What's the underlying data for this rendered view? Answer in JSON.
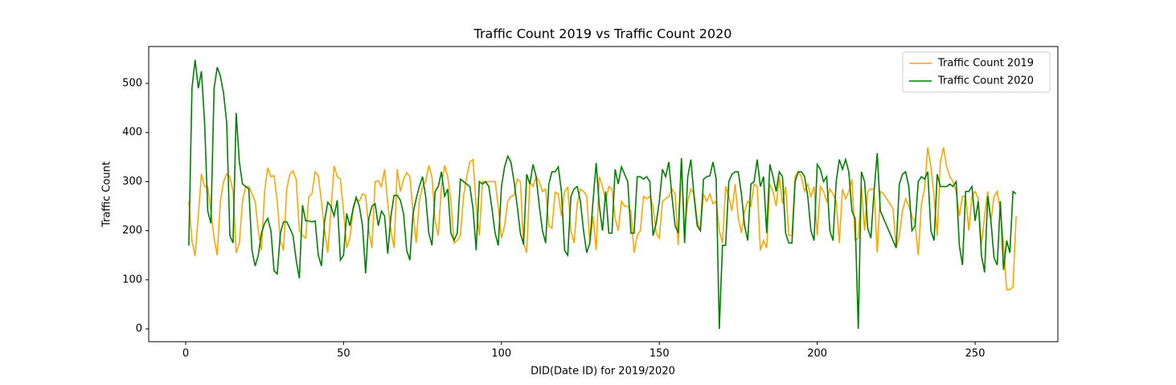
{
  "chart_data": {
    "type": "line",
    "title": "Traffic Count 2019 vs Traffic Count 2020",
    "x_label": "DID(Date ID) for 2019/2020",
    "y_label": "Traffic Count",
    "x": [
      1,
      2,
      3,
      4,
      5,
      6,
      7,
      8,
      9,
      10,
      11,
      12,
      13,
      14,
      15,
      16,
      17,
      18,
      19,
      20,
      21,
      22,
      23,
      24,
      25,
      26,
      27,
      28,
      29,
      30,
      31,
      32,
      33,
      34,
      35,
      36,
      37,
      38,
      39,
      40,
      41,
      42,
      43,
      44,
      45,
      46,
      47,
      48,
      49,
      50,
      51,
      52,
      53,
      54,
      55,
      56,
      57,
      58,
      59,
      60,
      61,
      62,
      63,
      64,
      65,
      66,
      67,
      68,
      69,
      70,
      71,
      72,
      73,
      74,
      75,
      76,
      77,
      78,
      79,
      80,
      81,
      82,
      83,
      84,
      85,
      86,
      87,
      88,
      89,
      90,
      91,
      92,
      93,
      94,
      95,
      96,
      97,
      98,
      99,
      100,
      101,
      102,
      103,
      104,
      105,
      106,
      107,
      108,
      109,
      110,
      111,
      112,
      113,
      114,
      115,
      116,
      117,
      118,
      119,
      120,
      121,
      122,
      123,
      124,
      125,
      126,
      127,
      128,
      129,
      130,
      131,
      132,
      133,
      134,
      135,
      136,
      137,
      138,
      139,
      140,
      141,
      142,
      143,
      144,
      145,
      146,
      147,
      148,
      149,
      150,
      151,
      152,
      153,
      154,
      155,
      156,
      157,
      158,
      159,
      160,
      161,
      162,
      163,
      164,
      165,
      166,
      167,
      168,
      169,
      170,
      171,
      172,
      173,
      174,
      175,
      176,
      177,
      178,
      179,
      180,
      181,
      182,
      183,
      184,
      185,
      186,
      187,
      188,
      189,
      190,
      191,
      192,
      193,
      194,
      195,
      196,
      197,
      198,
      199,
      200,
      201,
      202,
      203,
      204,
      205,
      206,
      207,
      208,
      209,
      210,
      211,
      212,
      213,
      214,
      215,
      216,
      217,
      218,
      219,
      220,
      221,
      222,
      223,
      224,
      225,
      226,
      227,
      228,
      229,
      230,
      231,
      232,
      233,
      234,
      235,
      236,
      237,
      238,
      239,
      240,
      241,
      242,
      243,
      244,
      245,
      246,
      247,
      248,
      249,
      250,
      251,
      252,
      253,
      254,
      255,
      256,
      257,
      258,
      259,
      260,
      261,
      262,
      263
    ],
    "series": [
      {
        "name": "Traffic Count 2019",
        "color": "orange",
        "values": [
          260,
          180,
          148,
          230,
          316,
          290,
          290,
          240,
          185,
          150,
          260,
          300,
          316,
          310,
          280,
          155,
          175,
          260,
          290,
          290,
          275,
          260,
          200,
          160,
          280,
          328,
          310,
          312,
          260,
          180,
          160,
          285,
          315,
          322,
          305,
          200,
          190,
          185,
          270,
          275,
          320,
          312,
          260,
          200,
          155,
          240,
          332,
          310,
          305,
          240,
          165,
          185,
          240,
          265,
          260,
          275,
          272,
          200,
          165,
          300,
          302,
          290,
          325,
          255,
          200,
          165,
          325,
          280,
          305,
          318,
          310,
          240,
          175,
          260,
          290,
          300,
          333,
          310,
          220,
          190,
          290,
          333,
          310,
          260,
          175,
          180,
          190,
          270,
          310,
          340,
          345,
          250,
          190,
          300,
          300,
          300,
          300,
          300,
          250,
          185,
          210,
          260,
          270,
          272,
          305,
          300,
          175,
          155,
          300,
          290,
          310,
          300,
          280,
          285,
          210,
          205,
          278,
          275,
          230,
          280,
          288,
          200,
          175,
          255,
          285,
          280,
          270,
          175,
          230,
          160,
          310,
          290,
          260,
          290,
          285,
          225,
          200,
          260,
          250,
          250,
          240,
          155,
          190,
          200,
          270,
          265,
          270,
          250,
          195,
          185,
          260,
          265,
          270,
          285,
          275,
          170,
          345,
          200,
          260,
          285,
          275,
          220,
          200,
          275,
          260,
          275,
          255,
          260,
          200,
          175,
          290,
          270,
          240,
          295,
          225,
          195,
          240,
          260,
          250,
          295,
          290,
          160,
          180,
          165,
          295,
          280,
          250,
          310,
          255,
          290,
          190,
          190,
          310,
          320,
          310,
          280,
          295,
          270,
          290,
          190,
          290,
          280,
          260,
          285,
          275,
          260,
          175,
          285,
          265,
          280,
          305,
          180,
          185,
          290,
          200,
          280,
          285,
          285,
          155,
          280,
          275,
          265,
          255,
          245,
          165,
          190,
          240,
          265,
          250,
          230,
          215,
          150,
          255,
          285,
          370,
          330,
          270,
          190,
          340,
          370,
          330,
          310,
          300,
          280,
          230,
          270,
          270,
          200,
          270,
          280,
          265,
          170,
          230,
          280,
          220,
          270,
          280,
          240,
          175,
          80,
          80,
          85,
          230
        ]
      },
      {
        "name": "Traffic Count 2020",
        "color": "green",
        "values": [
          170,
          490,
          548,
          490,
          525,
          420,
          240,
          215,
          490,
          533,
          515,
          480,
          420,
          190,
          175,
          440,
          340,
          295,
          290,
          285,
          160,
          128,
          150,
          195,
          215,
          225,
          200,
          118,
          112,
          195,
          218,
          218,
          205,
          190,
          140,
          103,
          252,
          220,
          220,
          218,
          220,
          150,
          128,
          220,
          258,
          250,
          230,
          262,
          140,
          150,
          235,
          210,
          245,
          268,
          250,
          210,
          113,
          225,
          250,
          255,
          210,
          240,
          230,
          153,
          230,
          272,
          272,
          262,
          235,
          160,
          140,
          235,
          265,
          290,
          310,
          270,
          195,
          170,
          280,
          290,
          320,
          270,
          285,
          195,
          180,
          195,
          305,
          300,
          295,
          290,
          245,
          160,
          300,
          295,
          300,
          290,
          245,
          195,
          170,
          290,
          330,
          352,
          340,
          300,
          250,
          195,
          172,
          315,
          295,
          335,
          310,
          250,
          200,
          175,
          295,
          320,
          320,
          330,
          280,
          160,
          150,
          270,
          285,
          290,
          260,
          200,
          155,
          175,
          260,
          338,
          250,
          200,
          280,
          195,
          195,
          325,
          295,
          330,
          315,
          300,
          195,
          195,
          310,
          310,
          305,
          310,
          300,
          190,
          215,
          260,
          325,
          310,
          340,
          270,
          210,
          195,
          348,
          175,
          310,
          345,
          270,
          210,
          200,
          305,
          310,
          312,
          340,
          305,
          0,
          170,
          170,
          300,
          315,
          320,
          320,
          275,
          210,
          180,
          295,
          300,
          345,
          290,
          310,
          195,
          335,
          310,
          280,
          320,
          310,
          195,
          175,
          175,
          300,
          320,
          320,
          310,
          270,
          200,
          180,
          335,
          325,
          300,
          310,
          200,
          180,
          300,
          345,
          325,
          345,
          320,
          240,
          225,
          0,
          320,
          300,
          205,
          185,
          280,
          358,
          240,
          225,
          210,
          195,
          180,
          165,
          295,
          315,
          320,
          290,
          200,
          210,
          300,
          310,
          305,
          320,
          200,
          180,
          315,
          290,
          290,
          290,
          295,
          290,
          300,
          170,
          130,
          280,
          280,
          290,
          220,
          260,
          150,
          115,
          270,
          220,
          145,
          130,
          260,
          120,
          180,
          155,
          280,
          275
        ]
      }
    ],
    "xlim": [
      -11.7,
      276.2
    ],
    "ylim": [
      -26.1,
      575.2
    ],
    "xticks": [
      0,
      50,
      100,
      150,
      200,
      250
    ],
    "yticks": [
      0,
      100,
      200,
      300,
      400,
      500
    ],
    "legend": "upper right"
  }
}
